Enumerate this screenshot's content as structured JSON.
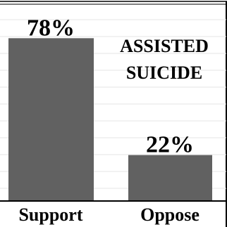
{
  "chart_data": {
    "type": "bar",
    "title_lines": [
      "ASSISTED",
      "SUICIDE"
    ],
    "categories": [
      "Support",
      "Oppose"
    ],
    "values": [
      78,
      22
    ],
    "value_labels": [
      "78%",
      "22%"
    ],
    "ylim": [
      0,
      100
    ],
    "grid": true,
    "colors": {
      "bar": "#616161",
      "frame": "#000000"
    }
  }
}
